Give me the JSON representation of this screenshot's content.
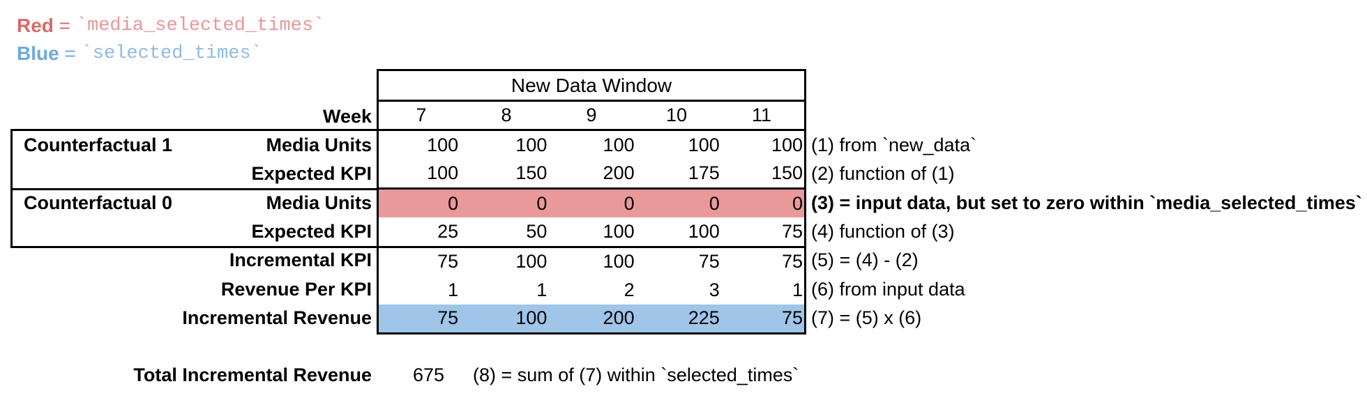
{
  "colors": {
    "red_fill": "#EA999B",
    "blue_fill": "#9FC5E8",
    "red_label": "#D96A6A",
    "red_code": "#E6989A",
    "blue_label": "#6FA8DC",
    "blue_code": "#8FBBE3",
    "border": "#000000"
  },
  "legend": {
    "red_name": "Red",
    "red_eq": " = ",
    "red_code": "`media_selected_times`",
    "blue_name": "Blue",
    "blue_eq": " = ",
    "blue_code": "`selected_times`"
  },
  "table": {
    "window_header": "New Data Window",
    "week_label": "Week",
    "weeks": [
      "7",
      "8",
      "9",
      "10",
      "11"
    ],
    "cf1_label": "Counterfactual 1",
    "cf0_label": "Counterfactual 0",
    "rows": [
      {
        "label": "Media Units",
        "values": [
          "100",
          "100",
          "100",
          "100",
          "100"
        ],
        "annotation": "(1) from `new_data`",
        "highlight": "none",
        "section": "Counterfactual 1"
      },
      {
        "label": "Expected KPI",
        "values": [
          "100",
          "150",
          "200",
          "175",
          "150"
        ],
        "annotation": "(2) function of (1)",
        "highlight": "none",
        "section": "Counterfactual 1"
      },
      {
        "label": "Media Units",
        "values": [
          "0",
          "0",
          "0",
          "0",
          "0"
        ],
        "annotation": "(3) = input data, but set to zero within `media_selected_times`",
        "highlight": "red",
        "section": "Counterfactual 0"
      },
      {
        "label": "Expected KPI",
        "values": [
          "25",
          "50",
          "100",
          "100",
          "75"
        ],
        "annotation": "(4) function of (3)",
        "highlight": "none",
        "section": "Counterfactual 0"
      },
      {
        "label": "Incremental KPI",
        "values": [
          "75",
          "100",
          "100",
          "75",
          "75"
        ],
        "annotation": "(5) = (4) - (2)",
        "highlight": "none",
        "section": ""
      },
      {
        "label": "Revenue Per KPI",
        "values": [
          "1",
          "1",
          "2",
          "3",
          "1"
        ],
        "annotation": "(6) from input data",
        "highlight": "none",
        "section": ""
      },
      {
        "label": "Incremental Revenue",
        "values": [
          "75",
          "100",
          "200",
          "225",
          "75"
        ],
        "annotation": "(7) = (5) x (6)",
        "highlight": "blue",
        "section": ""
      }
    ]
  },
  "total": {
    "label": "Total Incremental Revenue",
    "value": "675",
    "annotation": "(8) = sum of (7) within `selected_times`"
  }
}
